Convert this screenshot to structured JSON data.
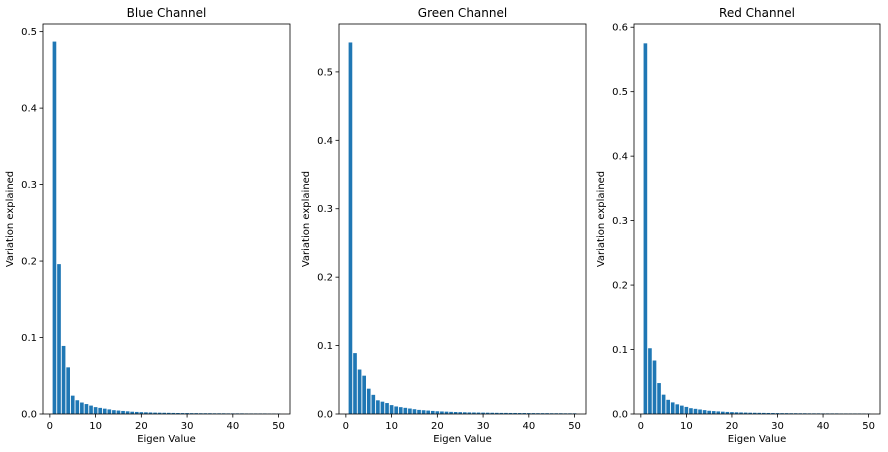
{
  "chart_data": [
    {
      "type": "bar",
      "title": "Blue Channel",
      "xlabel": "Eigen Value",
      "ylabel": "Variation explained",
      "color": "#1f77b4",
      "xlim": [
        -1.5,
        52.5
      ],
      "ylim": [
        0,
        0.51
      ],
      "xticks": [
        0,
        10,
        20,
        30,
        40,
        50
      ],
      "yticks": [
        0.0,
        0.1,
        0.2,
        0.3,
        0.4,
        0.5
      ],
      "grid": false,
      "x": [
        1,
        2,
        3,
        4,
        5,
        6,
        7,
        8,
        9,
        10,
        11,
        12,
        13,
        14,
        15,
        16,
        17,
        18,
        19,
        20,
        21,
        22,
        23,
        24,
        25,
        26,
        27,
        28,
        29,
        30,
        31,
        32,
        33,
        34,
        35,
        36,
        37,
        38,
        39,
        40,
        41,
        42,
        43,
        44,
        45,
        46,
        47,
        48,
        49,
        50
      ],
      "values": [
        0.487,
        0.196,
        0.089,
        0.061,
        0.024,
        0.018,
        0.015,
        0.013,
        0.011,
        0.009,
        0.008,
        0.007,
        0.006,
        0.005,
        0.0045,
        0.004,
        0.0035,
        0.003,
        0.0027,
        0.0024,
        0.0022,
        0.002,
        0.0018,
        0.0017,
        0.0016,
        0.0015,
        0.0014,
        0.0013,
        0.0012,
        0.0012,
        0.0011,
        0.0011,
        0.001,
        0.001,
        0.001,
        0.0009,
        0.0009,
        0.0009,
        0.0008,
        0.0008,
        0.0008,
        0.0008,
        0.0007,
        0.0007,
        0.0007,
        0.0007,
        0.0007,
        0.0006,
        0.0006,
        0.0006
      ]
    },
    {
      "type": "bar",
      "title": "Green Channel",
      "xlabel": "Eigen Value",
      "ylabel": "Variation explained",
      "color": "#1f77b4",
      "xlim": [
        -1.5,
        52.5
      ],
      "ylim": [
        0,
        0.57
      ],
      "xticks": [
        0,
        10,
        20,
        30,
        40,
        50
      ],
      "yticks": [
        0.0,
        0.1,
        0.2,
        0.3,
        0.4,
        0.5
      ],
      "grid": false,
      "x": [
        1,
        2,
        3,
        4,
        5,
        6,
        7,
        8,
        9,
        10,
        11,
        12,
        13,
        14,
        15,
        16,
        17,
        18,
        19,
        20,
        21,
        22,
        23,
        24,
        25,
        26,
        27,
        28,
        29,
        30,
        31,
        32,
        33,
        34,
        35,
        36,
        37,
        38,
        39,
        40,
        41,
        42,
        43,
        44,
        45,
        46,
        47,
        48,
        49,
        50
      ],
      "values": [
        0.543,
        0.089,
        0.065,
        0.056,
        0.037,
        0.028,
        0.02,
        0.018,
        0.016,
        0.013,
        0.011,
        0.01,
        0.009,
        0.008,
        0.007,
        0.006,
        0.0055,
        0.005,
        0.0045,
        0.004,
        0.0037,
        0.0034,
        0.0031,
        0.0029,
        0.0027,
        0.0025,
        0.0023,
        0.0022,
        0.0021,
        0.002,
        0.0019,
        0.0018,
        0.0017,
        0.0016,
        0.0016,
        0.0015,
        0.0015,
        0.0014,
        0.0014,
        0.0013,
        0.0013,
        0.0012,
        0.0012,
        0.0012,
        0.0011,
        0.0011,
        0.0011,
        0.001,
        0.001,
        0.001
      ]
    },
    {
      "type": "bar",
      "title": "Red Channel",
      "xlabel": "Eigen Value",
      "ylabel": "Variation explained",
      "color": "#1f77b4",
      "xlim": [
        -1.5,
        52.5
      ],
      "ylim": [
        0,
        0.605
      ],
      "xticks": [
        0,
        10,
        20,
        30,
        40,
        50
      ],
      "yticks": [
        0.0,
        0.1,
        0.2,
        0.3,
        0.4,
        0.5,
        0.6
      ],
      "grid": false,
      "x": [
        1,
        2,
        3,
        4,
        5,
        6,
        7,
        8,
        9,
        10,
        11,
        12,
        13,
        14,
        15,
        16,
        17,
        18,
        19,
        20,
        21,
        22,
        23,
        24,
        25,
        26,
        27,
        28,
        29,
        30,
        31,
        32,
        33,
        34,
        35,
        36,
        37,
        38,
        39,
        40,
        41,
        42,
        43,
        44,
        45,
        46,
        47,
        48,
        49,
        50
      ],
      "values": [
        0.575,
        0.102,
        0.083,
        0.048,
        0.03,
        0.022,
        0.018,
        0.015,
        0.013,
        0.011,
        0.009,
        0.008,
        0.007,
        0.006,
        0.005,
        0.0045,
        0.004,
        0.0036,
        0.0032,
        0.0029,
        0.0026,
        0.0024,
        0.0022,
        0.002,
        0.0019,
        0.0018,
        0.0017,
        0.0016,
        0.0015,
        0.0014,
        0.0013,
        0.0013,
        0.0012,
        0.0012,
        0.0011,
        0.0011,
        0.001,
        0.001,
        0.001,
        0.0009,
        0.0009,
        0.0009,
        0.0009,
        0.0008,
        0.0008,
        0.0008,
        0.0008,
        0.0008,
        0.0007,
        0.0007
      ]
    }
  ]
}
